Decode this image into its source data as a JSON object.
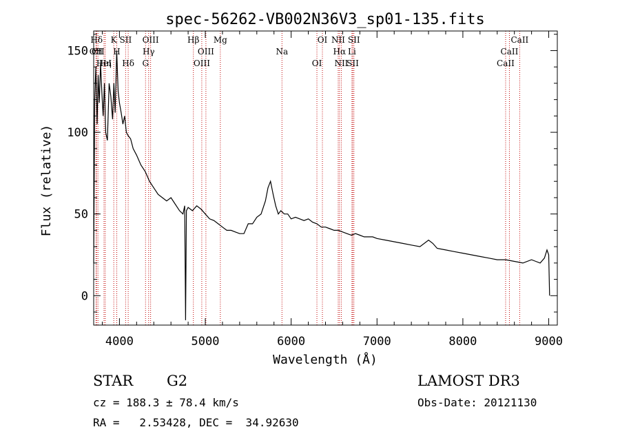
{
  "chart_data": {
    "type": "line",
    "title": "spec-56262-VB002N36V3_sp01-135.fits",
    "xlabel": "Wavelength (Å)",
    "ylabel": "Flux (relative)",
    "xlim": [
      3700,
      9100
    ],
    "ylim": [
      -18,
      162
    ],
    "xticks": [
      4000,
      5000,
      6000,
      7000,
      8000,
      9000
    ],
    "xtick_labels": [
      "4000",
      "5000",
      "6000",
      "7000",
      "8000",
      "9000"
    ],
    "yticks": [
      0,
      50,
      100,
      150
    ],
    "ytick_labels": [
      "0",
      "50",
      "100",
      "150"
    ],
    "grid": false,
    "series": [
      {
        "name": "flux",
        "x": [
          3700,
          3712,
          3725,
          3740,
          3752,
          3765,
          3780,
          3795,
          3810,
          3825,
          3840,
          3860,
          3880,
          3900,
          3920,
          3935,
          3950,
          3968,
          3985,
          4000,
          4020,
          4040,
          4060,
          4080,
          4100,
          4130,
          4160,
          4200,
          4250,
          4300,
          4350,
          4400,
          4450,
          4500,
          4550,
          4600,
          4650,
          4700,
          4740,
          4760,
          4770,
          4780,
          4800,
          4850,
          4900,
          4950,
          5000,
          5050,
          5100,
          5150,
          5200,
          5250,
          5300,
          5350,
          5400,
          5450,
          5500,
          5550,
          5600,
          5650,
          5700,
          5730,
          5760,
          5790,
          5820,
          5850,
          5880,
          5920,
          5960,
          6000,
          6050,
          6100,
          6150,
          6200,
          6250,
          6300,
          6350,
          6400,
          6450,
          6500,
          6550,
          6600,
          6650,
          6700,
          6750,
          6800,
          6850,
          6900,
          6950,
          7000,
          7100,
          7200,
          7300,
          7400,
          7500,
          7600,
          7650,
          7700,
          7800,
          7900,
          8000,
          8100,
          8200,
          8300,
          8400,
          8500,
          8600,
          8700,
          8800,
          8850,
          8900,
          8950,
          8980,
          9000,
          9010
        ],
        "y": [
          20,
          120,
          140,
          105,
          135,
          118,
          142,
          125,
          110,
          130,
          100,
          95,
          130,
          122,
          108,
          130,
          112,
          150,
          125,
          118,
          112,
          105,
          110,
          100,
          98,
          96,
          90,
          86,
          80,
          76,
          70,
          66,
          62,
          60,
          58,
          60,
          56,
          52,
          50,
          55,
          -15,
          52,
          54,
          52,
          55,
          53,
          50,
          47,
          46,
          44,
          42,
          40,
          40,
          39,
          38,
          38,
          44,
          44,
          48,
          50,
          58,
          66,
          70,
          62,
          55,
          50,
          52,
          50,
          50,
          47,
          48,
          47,
          46,
          47,
          45,
          44,
          42,
          42,
          41,
          40,
          40,
          39,
          38,
          37,
          38,
          37,
          36,
          36,
          36,
          35,
          34,
          33,
          32,
          31,
          30,
          34,
          32,
          29,
          28,
          27,
          26,
          25,
          24,
          23,
          22,
          22,
          21,
          20,
          22,
          21,
          20,
          23,
          28,
          25,
          0
        ]
      }
    ],
    "line_markers": [
      {
        "label": "Hδ",
        "x": 3734
      },
      {
        "label": "OII",
        "x": 3727
      },
      {
        "label": "HeI",
        "x": 3820
      },
      {
        "label": "K",
        "x": 3934
      },
      {
        "label": "CII",
        "x": 3750
      },
      {
        "label": "Hη",
        "x": 3835
      },
      {
        "label": "SII",
        "x": 4072
      },
      {
        "label": "H",
        "x": 3969
      },
      {
        "label": "Hδ",
        "x": 4102
      },
      {
        "label": "OIII",
        "x": 4363
      },
      {
        "label": "Hγ",
        "x": 4340
      },
      {
        "label": "G",
        "x": 4304
      },
      {
        "label": "Hβ",
        "x": 4861
      },
      {
        "label": "OIII",
        "x": 5007
      },
      {
        "label": "OIII",
        "x": 4959
      },
      {
        "label": "Mg",
        "x": 5175
      },
      {
        "label": "Na",
        "x": 5893
      },
      {
        "label": "OI",
        "x": 6300
      },
      {
        "label": "OI",
        "x": 6364
      },
      {
        "label": "Hα",
        "x": 6563
      },
      {
        "label": "SII",
        "x": 6717
      },
      {
        "label": "NII",
        "x": 6548
      },
      {
        "label": "Li",
        "x": 6708
      },
      {
        "label": "NII",
        "x": 6584
      },
      {
        "label": "SII",
        "x": 6731
      },
      {
        "label": "CaII",
        "x": 8542
      },
      {
        "label": "CaII",
        "x": 8498
      },
      {
        "label": "CaII",
        "x": 8662
      }
    ]
  },
  "info": {
    "class": "STAR",
    "subclass": "G2",
    "survey": "LAMOST DR3",
    "cz": "cz = 188.3 ± 78.4 km/s",
    "obs_date": "Obs-Date: 20121130",
    "coords": "RA =   2.53428, DEC =  34.92630"
  }
}
